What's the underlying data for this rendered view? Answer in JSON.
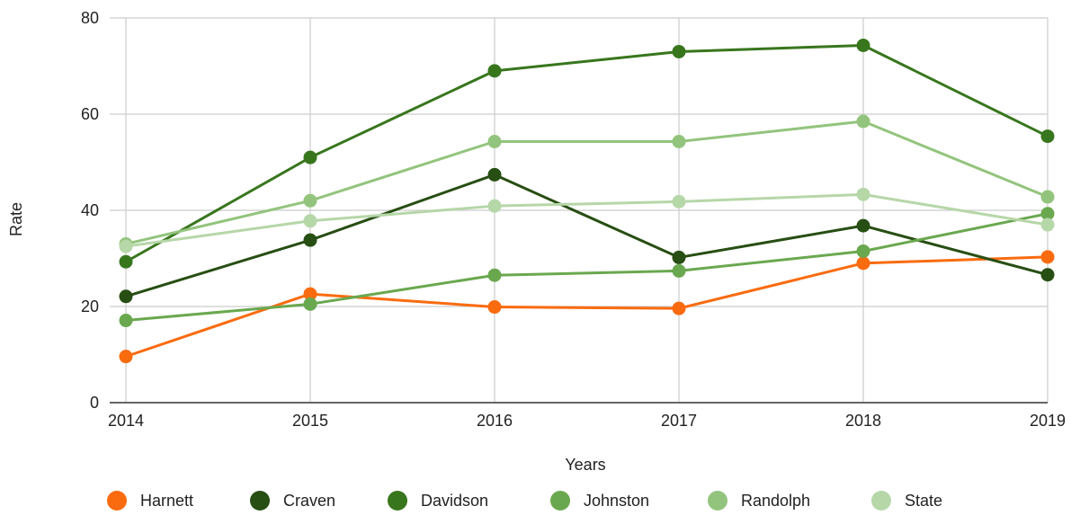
{
  "chart_data": {
    "type": "line",
    "title": "",
    "xlabel": "Years",
    "ylabel": "Rate",
    "x": [
      "2014",
      "2015",
      "2016",
      "2017",
      "2018",
      "2019"
    ],
    "ylim": [
      0,
      80
    ],
    "yticks": [
      0,
      20,
      40,
      60,
      80
    ],
    "grid": true,
    "legend_position": "bottom",
    "series": [
      {
        "name": "Harnett",
        "color": "#fa6b0f",
        "values": [
          9.6,
          22.6,
          19.9,
          19.6,
          29.0,
          30.3
        ]
      },
      {
        "name": "Craven",
        "color": "#274e13",
        "values": [
          22.1,
          33.8,
          47.4,
          30.2,
          36.8,
          26.6
        ]
      },
      {
        "name": "Davidson",
        "color": "#38761d",
        "values": [
          29.3,
          51.0,
          69.0,
          73.0,
          74.3,
          55.4
        ]
      },
      {
        "name": "Johnston",
        "color": "#6aa84f",
        "values": [
          17.1,
          20.5,
          26.5,
          27.4,
          31.5,
          39.3
        ]
      },
      {
        "name": "Randolph",
        "color": "#93c47d",
        "values": [
          33.0,
          42.0,
          54.3,
          54.3,
          58.5,
          42.8
        ]
      },
      {
        "name": "State",
        "color": "#b6d7a8",
        "values": [
          32.5,
          37.8,
          40.9,
          41.8,
          43.3,
          37.0
        ]
      }
    ]
  }
}
